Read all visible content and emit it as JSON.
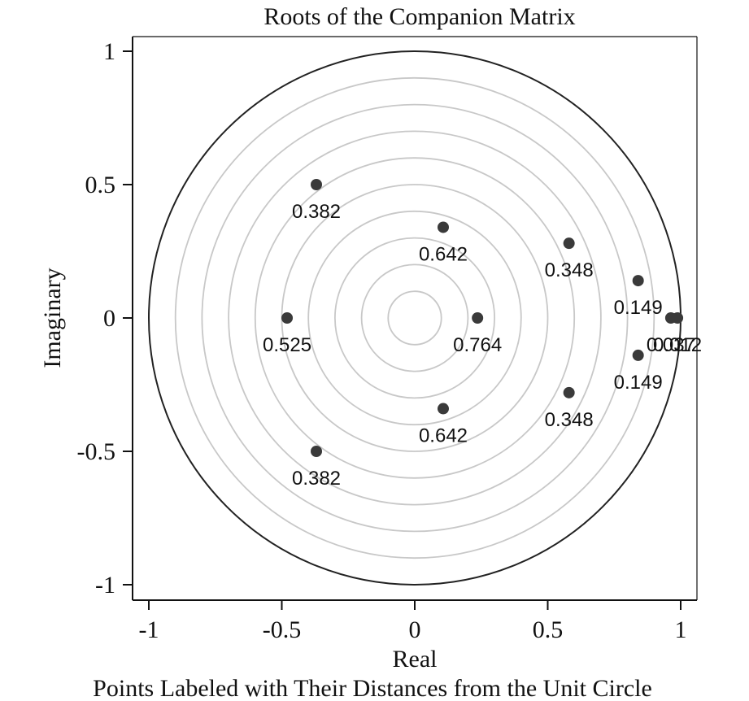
{
  "chart_data": {
    "type": "scatter",
    "title": "Roots of the Companion Matrix",
    "subtitle": "Points Labeled with Their Distances from the Unit Circle",
    "xlabel": "Real",
    "ylabel": "Imaginary",
    "xlim": [
      -1,
      1
    ],
    "ylim": [
      -1,
      1
    ],
    "x_ticks": [
      "-1",
      "-0.5",
      "0",
      "0.5",
      "1"
    ],
    "y_ticks": [
      "1",
      "0.5",
      "0",
      "-0.5",
      "-1"
    ],
    "x_tick_values": [
      -1,
      -0.5,
      0,
      0.5,
      1
    ],
    "y_tick_values": [
      1,
      0.5,
      0,
      -0.5,
      -1
    ],
    "grid_circles": [
      0.1,
      0.2,
      0.3,
      0.4,
      0.5,
      0.6,
      0.7,
      0.8,
      0.9
    ],
    "unit_circle": true,
    "colors": {
      "points": "#3a3a3a",
      "grid": "#c8c8c8",
      "unit_circle": "#222222"
    },
    "points": [
      {
        "x": -0.37,
        "y": 0.5,
        "label": "0.382"
      },
      {
        "x": 0.107,
        "y": 0.34,
        "label": "0.642"
      },
      {
        "x": 0.58,
        "y": 0.28,
        "label": "0.348"
      },
      {
        "x": 0.84,
        "y": 0.14,
        "label": "0.149"
      },
      {
        "x": -0.48,
        "y": 0.0,
        "label": "0.525"
      },
      {
        "x": 0.236,
        "y": 0.0,
        "label": "0.764"
      },
      {
        "x": 0.963,
        "y": 0.0,
        "label": "0.037"
      },
      {
        "x": 0.988,
        "y": 0.0,
        "label": "0.012"
      },
      {
        "x": 0.84,
        "y": -0.14,
        "label": "0.149"
      },
      {
        "x": 0.58,
        "y": -0.28,
        "label": "0.348"
      },
      {
        "x": 0.107,
        "y": -0.34,
        "label": "0.642"
      },
      {
        "x": -0.37,
        "y": -0.5,
        "label": "0.382"
      }
    ]
  }
}
